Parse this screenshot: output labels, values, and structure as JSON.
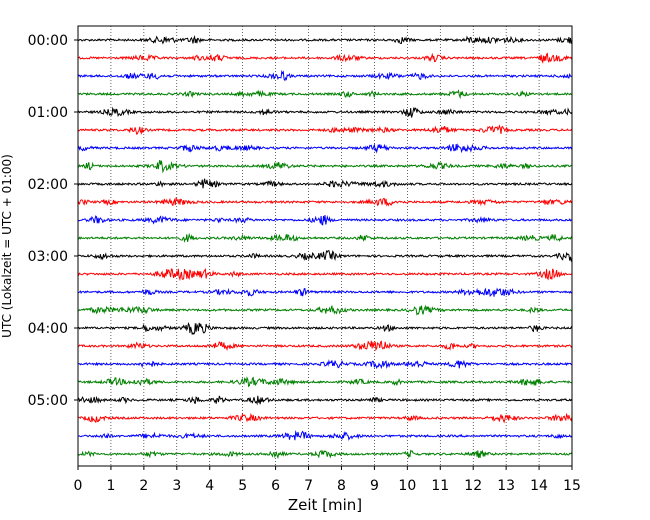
{
  "chart_data": {
    "type": "line",
    "subtype": "helicorder",
    "xlabel": "Zeit  [min]",
    "ylabel": "UTC (Lokalzeit = UTC + 01:00)",
    "xlim": [
      0,
      15
    ],
    "x_ticks": [
      0,
      1,
      2,
      3,
      4,
      5,
      6,
      7,
      8,
      9,
      10,
      11,
      12,
      13,
      14,
      15
    ],
    "x_tick_labels": [
      "0",
      "1",
      "2",
      "3",
      "4",
      "5",
      "6",
      "7",
      "8",
      "9",
      "10",
      "11",
      "12",
      "13",
      "14",
      "15"
    ],
    "y_tick_labels": [
      "00:00",
      "01:00",
      "02:00",
      "03:00",
      "04:00",
      "05:00"
    ],
    "grid": "vertical dotted",
    "trace_colors": [
      "#000000",
      "#ff0000",
      "#0000ff",
      "#008000"
    ],
    "trace_count": 24,
    "trace_interval_min": 15
  }
}
